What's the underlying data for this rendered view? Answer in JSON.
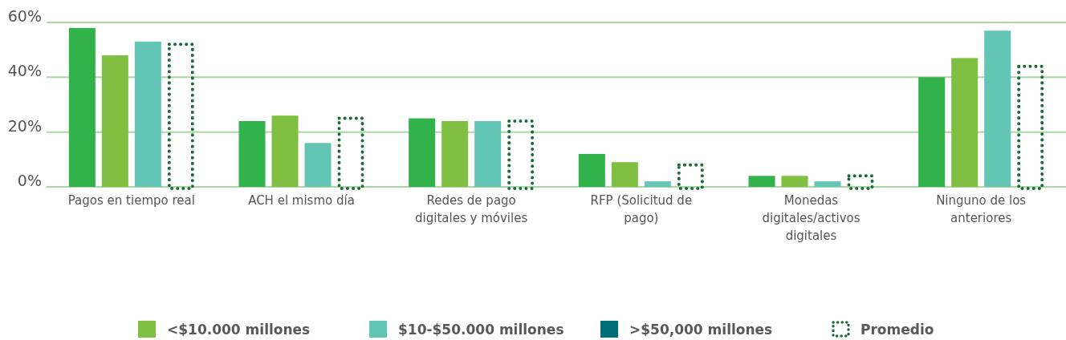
{
  "chart_data": {
    "type": "bar",
    "categories": [
      "Pagos en tiempo real",
      "ACH el mismo día",
      "Redes de pago digitales y móviles",
      "RFP (Solicitud de pago)",
      "Monedas digitales/activos digitales",
      "Ninguno de los anteriores"
    ],
    "series": [
      {
        "color": "#32b24a",
        "values": [
          58,
          24,
          25,
          12,
          4,
          40
        ]
      },
      {
        "name": "<$10.000 millones",
        "color": "#7fc042",
        "values": [
          48,
          26,
          24,
          9,
          4,
          47
        ]
      },
      {
        "name": "$10-$50.000 millones",
        "color": "#63c5b3",
        "values": [
          53,
          16,
          24,
          2,
          2,
          57
        ]
      },
      {
        "name": ">$50,000 millones",
        "color": "#006d77",
        "values": [
          null,
          null,
          null,
          null,
          null,
          null
        ]
      },
      {
        "name": "Promedio",
        "color": "#1a6b3a",
        "line_style": "dotted",
        "values": [
          52,
          25,
          24,
          8,
          4,
          44
        ]
      }
    ],
    "ylim": [
      0,
      60
    ],
    "yticks": [
      {
        "value": 0,
        "label": "0%"
      },
      {
        "value": 20,
        "label": "20%"
      },
      {
        "value": 40,
        "label": "40%"
      },
      {
        "value": 60,
        "label": "60%"
      }
    ],
    "grid": "y",
    "legend": "bottom"
  }
}
